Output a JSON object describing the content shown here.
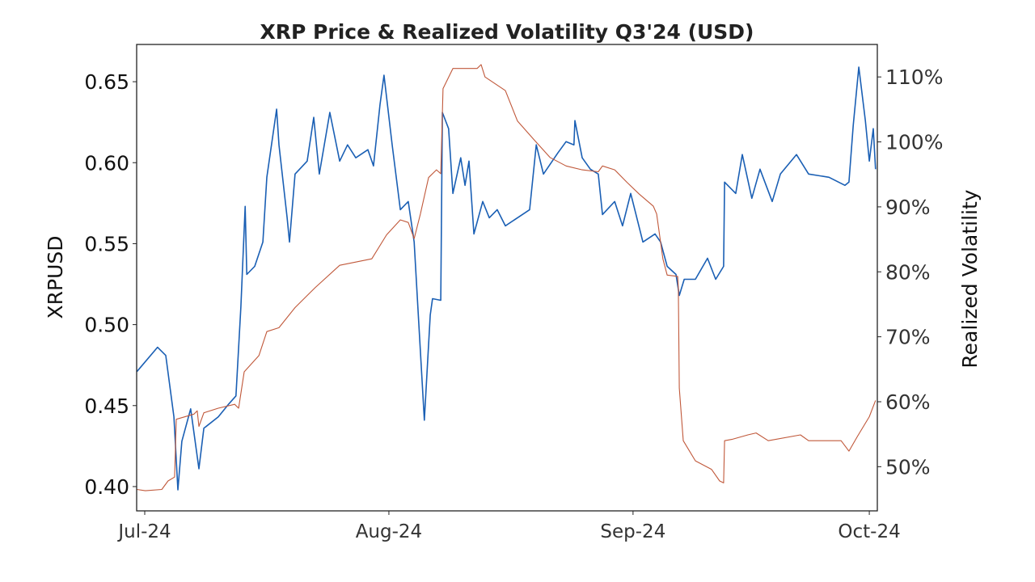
{
  "chart_data": {
    "type": "line",
    "title": "XRP Price & Realized Volatility Q3'24 (USD)",
    "ylabel_left": "XRPUSD",
    "ylabel_right": "Realized Volatility",
    "xlim": [
      "2024-06-30T00:00",
      "2024-10-02T00:00"
    ],
    "ylim_left": [
      0.385,
      0.673
    ],
    "ylim_right": [
      43.2,
      115.0
    ],
    "grid": false,
    "x_ticks": [
      {
        "date": "2024-07-01T00:00",
        "label": "Jul-24"
      },
      {
        "date": "2024-08-01T00:00",
        "label": "Aug-24"
      },
      {
        "date": "2024-09-01T00:00",
        "label": "Sep-24"
      },
      {
        "date": "2024-10-01T00:00",
        "label": "Oct-24"
      }
    ],
    "y_ticks_left": [
      {
        "value": 0.4,
        "label": "0.40"
      },
      {
        "value": 0.45,
        "label": "0.45"
      },
      {
        "value": 0.5,
        "label": "0.50"
      },
      {
        "value": 0.55,
        "label": "0.55"
      },
      {
        "value": 0.6,
        "label": "0.60"
      },
      {
        "value": 0.65,
        "label": "0.65"
      }
    ],
    "y_ticks_right": [
      {
        "value": 50,
        "label": "50%"
      },
      {
        "value": 60,
        "label": "60%"
      },
      {
        "value": 70,
        "label": "70%"
      },
      {
        "value": 80,
        "label": "80%"
      },
      {
        "value": 90,
        "label": "90%"
      },
      {
        "value": 100,
        "label": "100%"
      },
      {
        "value": 110,
        "label": "110%"
      }
    ],
    "series": [
      {
        "axis": "left",
        "color": "#1a5fb4",
        "points": [
          [
            "2024-06-30T00:00",
            0.471
          ],
          [
            "2024-07-02T15:00",
            0.486
          ],
          [
            "2024-07-03T16:00",
            0.481
          ],
          [
            "2024-07-04T17:00",
            0.443
          ],
          [
            "2024-07-05T05:00",
            0.398
          ],
          [
            "2024-07-05T17:00",
            0.428
          ],
          [
            "2024-07-06T20:00",
            0.448
          ],
          [
            "2024-07-07T21:00",
            0.411
          ],
          [
            "2024-07-08T12:00",
            0.436
          ],
          [
            "2024-07-10T08:00",
            0.443
          ],
          [
            "2024-07-11T16:00",
            0.451
          ],
          [
            "2024-07-12T14:00",
            0.456
          ],
          [
            "2024-07-13T05:00",
            0.511
          ],
          [
            "2024-07-13T18:00",
            0.573
          ],
          [
            "2024-07-13T23:00",
            0.531
          ],
          [
            "2024-07-14T23:00",
            0.536
          ],
          [
            "2024-07-16T00:00",
            0.551
          ],
          [
            "2024-07-16T12:00",
            0.591
          ],
          [
            "2024-07-17T18:00",
            0.633
          ],
          [
            "2024-07-18T01:00",
            0.611
          ],
          [
            "2024-07-19T02:00",
            0.566
          ],
          [
            "2024-07-19T09:00",
            0.551
          ],
          [
            "2024-07-20T02:00",
            0.593
          ],
          [
            "2024-07-21T15:00",
            0.601
          ],
          [
            "2024-07-22T11:00",
            0.628
          ],
          [
            "2024-07-23T04:00",
            0.593
          ],
          [
            "2024-07-24T12:00",
            0.631
          ],
          [
            "2024-07-25T18:00",
            0.601
          ],
          [
            "2024-07-26T18:00",
            0.611
          ],
          [
            "2024-07-27T19:00",
            0.603
          ],
          [
            "2024-07-29T08:00",
            0.608
          ],
          [
            "2024-07-30T01:00",
            0.598
          ],
          [
            "2024-07-30T21:00",
            0.636
          ],
          [
            "2024-07-31T09:00",
            0.654
          ],
          [
            "2024-08-01T10:00",
            0.611
          ],
          [
            "2024-08-02T11:00",
            0.571
          ],
          [
            "2024-08-03T11:00",
            0.576
          ],
          [
            "2024-08-04T05:00",
            0.551
          ],
          [
            "2024-08-04T19:00",
            0.501
          ],
          [
            "2024-08-05T12:00",
            0.441
          ],
          [
            "2024-08-06T06:00",
            0.506
          ],
          [
            "2024-08-06T13:00",
            0.516
          ],
          [
            "2024-08-07T14:00",
            0.515
          ],
          [
            "2024-08-07T19:00",
            0.631
          ],
          [
            "2024-08-08T14:00",
            0.621
          ],
          [
            "2024-08-09T03:00",
            0.581
          ],
          [
            "2024-08-10T03:00",
            0.603
          ],
          [
            "2024-08-10T16:00",
            0.586
          ],
          [
            "2024-08-11T04:00",
            0.601
          ],
          [
            "2024-08-11T19:00",
            0.556
          ],
          [
            "2024-08-12T22:00",
            0.576
          ],
          [
            "2024-08-13T18:00",
            0.566
          ],
          [
            "2024-08-14T18:00",
            0.571
          ],
          [
            "2024-08-15T19:00",
            0.561
          ],
          [
            "2024-08-17T08:00",
            0.566
          ],
          [
            "2024-08-18T21:00",
            0.571
          ],
          [
            "2024-08-19T17:00",
            0.611
          ],
          [
            "2024-08-20T15:00",
            0.593
          ],
          [
            "2024-08-22T11:00",
            0.606
          ],
          [
            "2024-08-23T12:00",
            0.613
          ],
          [
            "2024-08-24T12:00",
            0.611
          ],
          [
            "2024-08-24T15:00",
            0.626
          ],
          [
            "2024-08-25T13:00",
            0.603
          ],
          [
            "2024-08-26T14:00",
            0.596
          ],
          [
            "2024-08-27T14:00",
            0.593
          ],
          [
            "2024-08-28T03:00",
            0.568
          ],
          [
            "2024-08-29T16:00",
            0.576
          ],
          [
            "2024-08-30T16:00",
            0.561
          ],
          [
            "2024-08-31T17:00",
            0.581
          ],
          [
            "2024-09-02T06:00",
            0.551
          ],
          [
            "2024-09-03T19:00",
            0.556
          ],
          [
            "2024-09-04T12:00",
            0.551
          ],
          [
            "2024-09-05T08:00",
            0.536
          ],
          [
            "2024-09-06T11:00",
            0.531
          ],
          [
            "2024-09-06T21:00",
            0.518
          ],
          [
            "2024-09-07T12:00",
            0.528
          ],
          [
            "2024-09-08T22:00",
            0.528
          ],
          [
            "2024-09-10T11:00",
            0.541
          ],
          [
            "2024-09-11T12:00",
            0.528
          ],
          [
            "2024-09-12T12:00",
            0.536
          ],
          [
            "2024-09-12T15:00",
            0.588
          ],
          [
            "2024-09-14T01:00",
            0.581
          ],
          [
            "2024-09-14T21:00",
            0.605
          ],
          [
            "2024-09-16T02:00",
            0.578
          ],
          [
            "2024-09-17T03:00",
            0.596
          ],
          [
            "2024-09-18T16:00",
            0.576
          ],
          [
            "2024-09-19T17:00",
            0.593
          ],
          [
            "2024-09-21T18:00",
            0.605
          ],
          [
            "2024-09-23T07:00",
            0.593
          ],
          [
            "2024-09-25T21:00",
            0.591
          ],
          [
            "2024-09-27T22:00",
            0.586
          ],
          [
            "2024-09-28T10:00",
            0.588
          ],
          [
            "2024-09-28T23:00",
            0.623
          ],
          [
            "2024-09-29T16:00",
            0.659
          ],
          [
            "2024-09-30T12:00",
            0.626
          ],
          [
            "2024-10-01T00:00",
            0.601
          ],
          [
            "2024-10-01T12:00",
            0.621
          ],
          [
            "2024-10-01T19:00",
            0.596
          ]
        ]
      },
      {
        "axis": "right",
        "color": "#c0583a",
        "points": [
          [
            "2024-06-30T00:00",
            46.5
          ],
          [
            "2024-07-01T02:00",
            46.3
          ],
          [
            "2024-07-03T04:00",
            46.5
          ],
          [
            "2024-07-03T23:00",
            47.8
          ],
          [
            "2024-07-04T19:00",
            48.4
          ],
          [
            "2024-07-05T00:00",
            57.3
          ],
          [
            "2024-07-07T06:00",
            58.1
          ],
          [
            "2024-07-07T16:00",
            58.6
          ],
          [
            "2024-07-07T21:00",
            56.2
          ],
          [
            "2024-07-08T12:00",
            58.3
          ],
          [
            "2024-07-10T08:00",
            59.0
          ],
          [
            "2024-07-12T10:00",
            59.6
          ],
          [
            "2024-07-12T22:00",
            59.0
          ],
          [
            "2024-07-13T15:00",
            64.6
          ],
          [
            "2024-07-15T12:00",
            67.1
          ],
          [
            "2024-07-16T12:00",
            70.8
          ],
          [
            "2024-07-18T01:00",
            71.4
          ],
          [
            "2024-07-20T02:00",
            74.5
          ],
          [
            "2024-07-22T16:00",
            77.6
          ],
          [
            "2024-07-25T18:00",
            81.0
          ],
          [
            "2024-07-29T20:00",
            82.0
          ],
          [
            "2024-07-31T17:00",
            85.7
          ],
          [
            "2024-08-02T11:00",
            88.0
          ],
          [
            "2024-08-03T11:00",
            87.6
          ],
          [
            "2024-08-04T05:00",
            85.1
          ],
          [
            "2024-08-05T00:00",
            88.9
          ],
          [
            "2024-08-06T01:00",
            94.5
          ],
          [
            "2024-08-07T01:00",
            95.7
          ],
          [
            "2024-08-07T14:00",
            95.1
          ],
          [
            "2024-08-07T21:00",
            108.2
          ],
          [
            "2024-08-09T03:00",
            111.3
          ],
          [
            "2024-08-12T05:00",
            111.3
          ],
          [
            "2024-08-12T17:00",
            111.9
          ],
          [
            "2024-08-13T05:00",
            110.0
          ],
          [
            "2024-08-15T19:00",
            107.9
          ],
          [
            "2024-08-17T08:00",
            103.2
          ],
          [
            "2024-08-19T09:00",
            100.4
          ],
          [
            "2024-08-21T11:00",
            97.6
          ],
          [
            "2024-08-23T12:00",
            96.3
          ],
          [
            "2024-08-25T13:00",
            95.7
          ],
          [
            "2024-08-27T14:00",
            95.4
          ],
          [
            "2024-08-28T03:00",
            96.3
          ],
          [
            "2024-08-29T16:00",
            95.7
          ],
          [
            "2024-08-31T05:00",
            93.8
          ],
          [
            "2024-09-01T18:00",
            92.0
          ],
          [
            "2024-09-03T14:00",
            90.1
          ],
          [
            "2024-09-04T00:00",
            88.9
          ],
          [
            "2024-09-04T19:00",
            82.0
          ],
          [
            "2024-09-05T08:00",
            79.5
          ],
          [
            "2024-09-06T16:00",
            79.3
          ],
          [
            "2024-09-06T18:00",
            77.6
          ],
          [
            "2024-09-06T21:00",
            62.1
          ],
          [
            "2024-09-07T09:00",
            54.0
          ],
          [
            "2024-09-08T22:00",
            50.9
          ],
          [
            "2024-09-10T23:00",
            49.6
          ],
          [
            "2024-09-12T00:00",
            47.8
          ],
          [
            "2024-09-12T12:00",
            47.5
          ],
          [
            "2024-09-12T15:00",
            54.0
          ],
          [
            "2024-09-13T13:00",
            54.2
          ],
          [
            "2024-09-15T14:00",
            54.9
          ],
          [
            "2024-09-16T15:00",
            55.2
          ],
          [
            "2024-09-18T04:00",
            54.0
          ],
          [
            "2024-09-22T06:00",
            54.9
          ],
          [
            "2024-09-23T07:00",
            54.0
          ],
          [
            "2024-09-27T10:00",
            54.0
          ],
          [
            "2024-09-28T10:00",
            52.4
          ],
          [
            "2024-09-29T11:00",
            54.6
          ],
          [
            "2024-10-01T00:00",
            57.7
          ],
          [
            "2024-10-01T19:00",
            60.2
          ]
        ]
      }
    ]
  }
}
